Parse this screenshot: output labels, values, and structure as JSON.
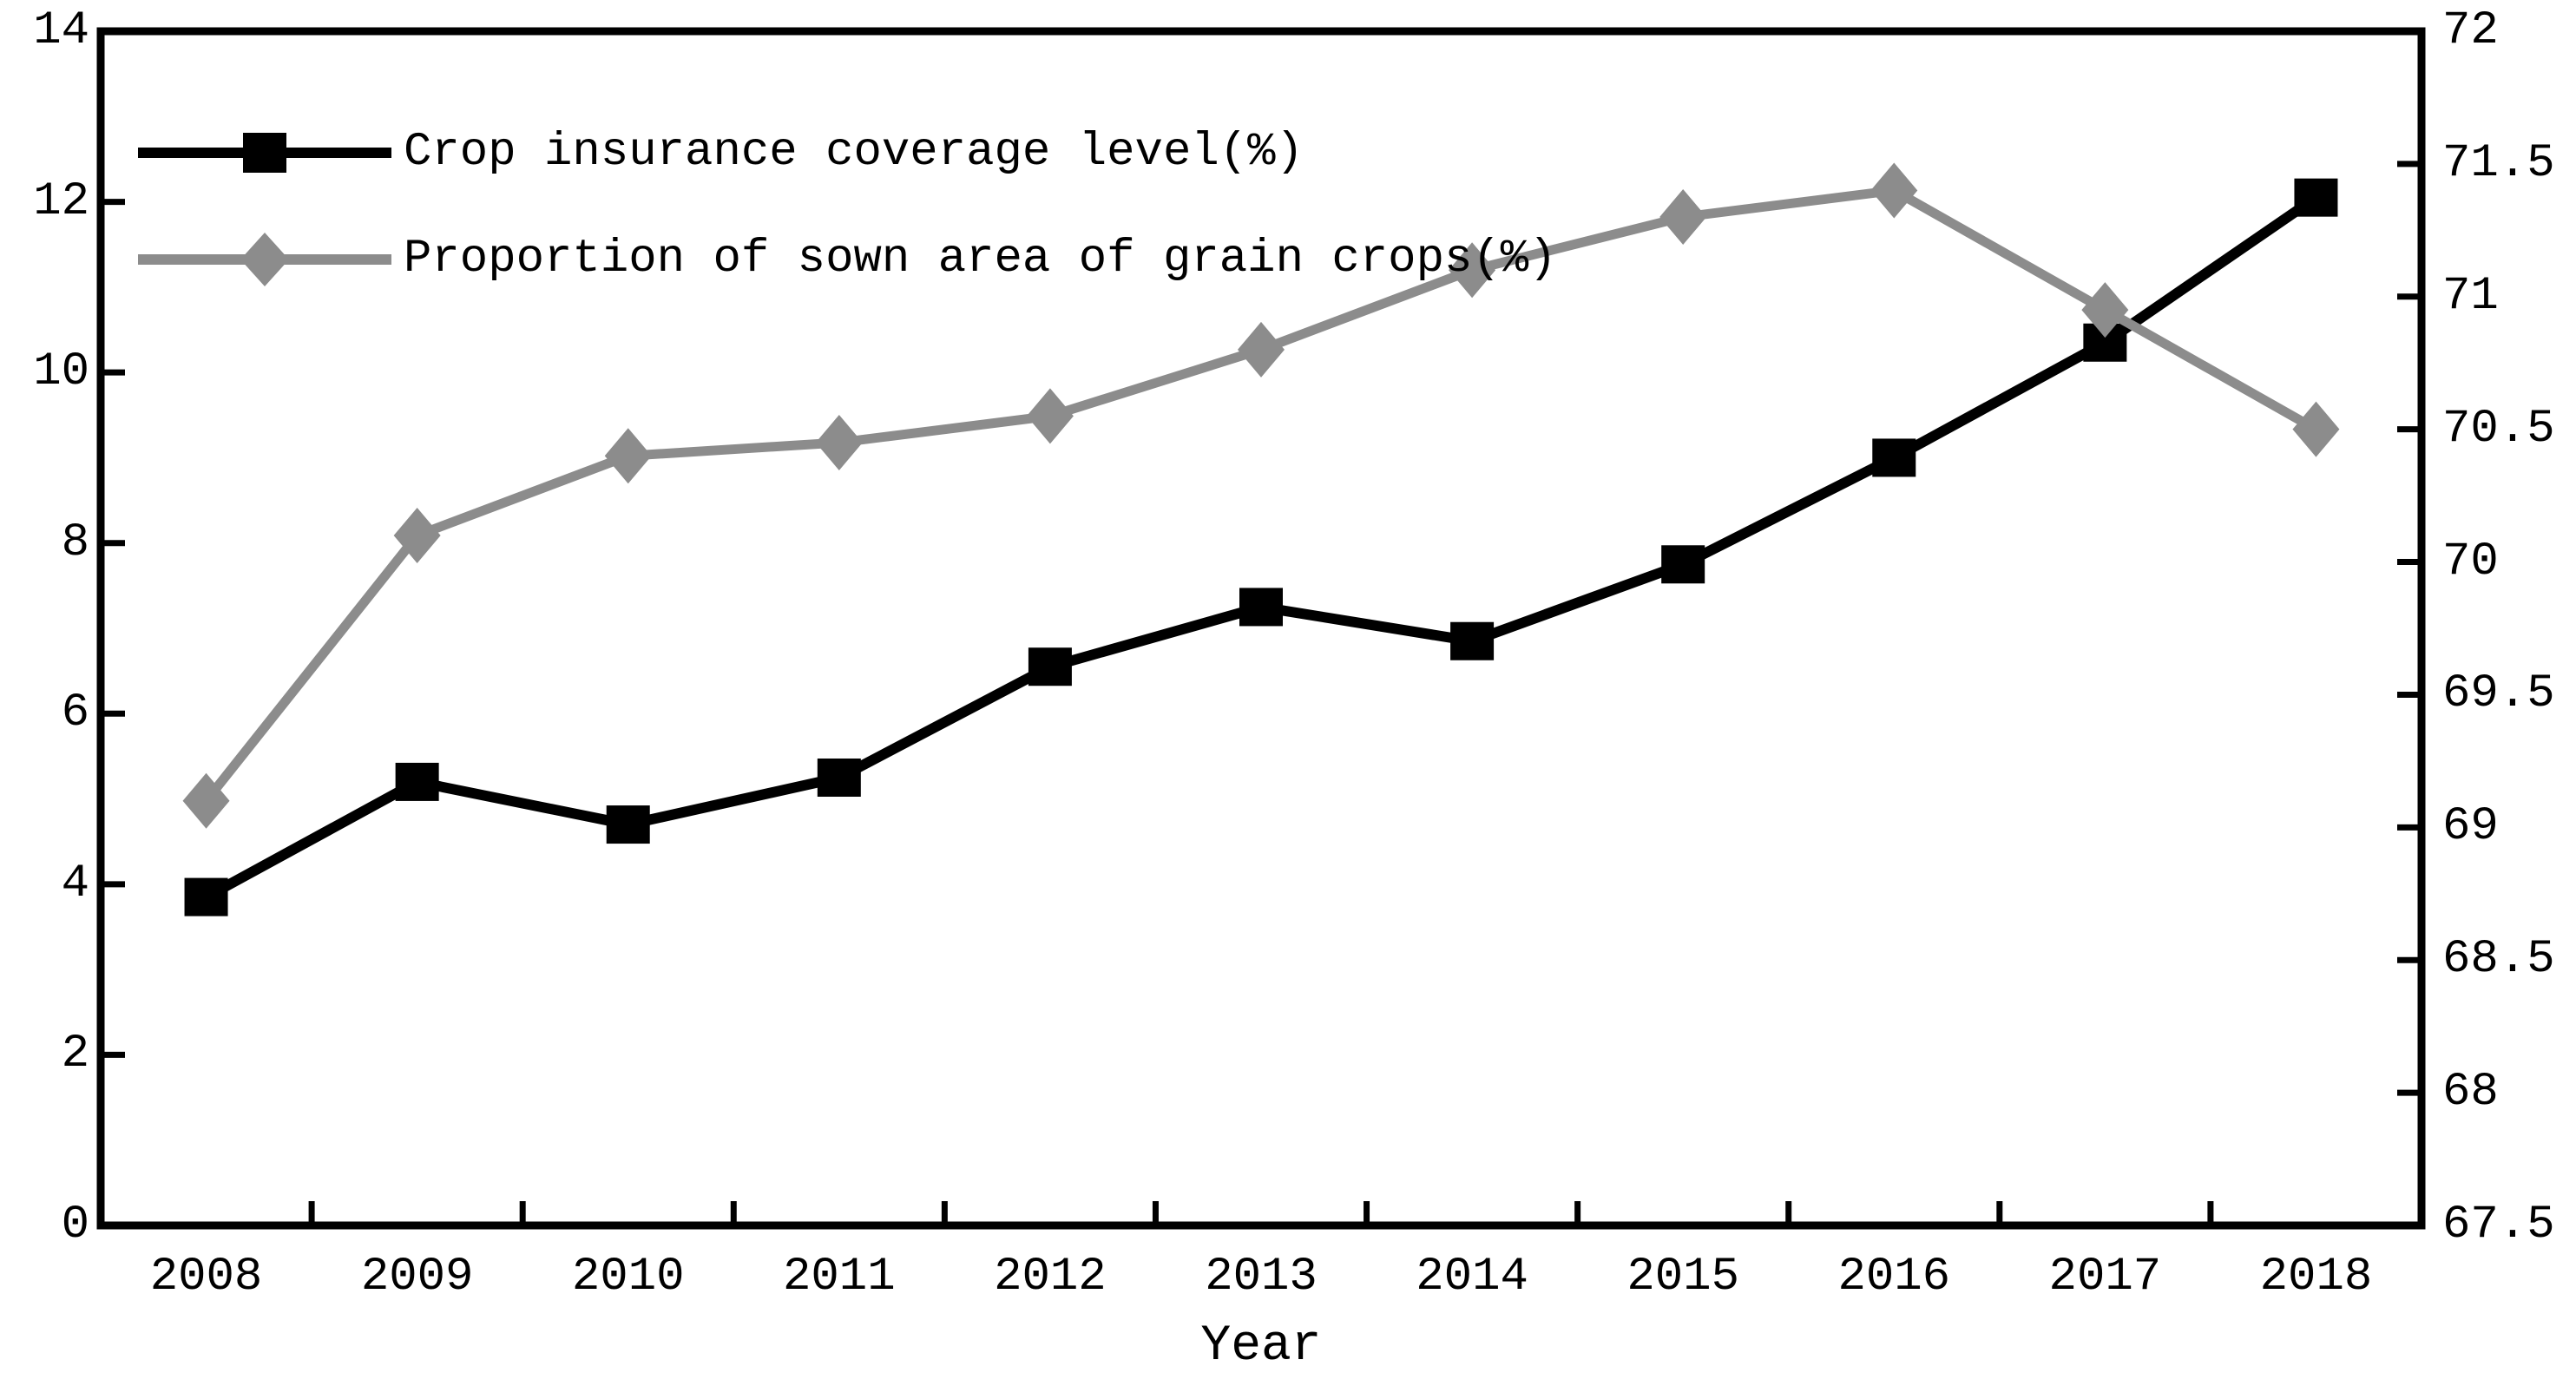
{
  "page": {
    "background": "#ffffff"
  },
  "chart_data": {
    "type": "line",
    "title": "",
    "xlabel": "Year",
    "categories": [
      "2008",
      "2009",
      "2010",
      "2011",
      "2012",
      "2013",
      "2014",
      "2015",
      "2016",
      "2017",
      "2018"
    ],
    "series": [
      {
        "name": "Crop insurance coverage level(%)",
        "axis": "left",
        "color": "#000000",
        "marker": "square",
        "values": [
          3.85,
          5.2,
          4.7,
          5.25,
          6.55,
          7.25,
          6.85,
          7.75,
          9.0,
          10.35,
          12.05
        ]
      },
      {
        "name": "Proportion of sown area of grain crops(%)",
        "axis": "right",
        "color": "#8c8c8c",
        "marker": "diamond",
        "values": [
          69.1,
          70.1,
          70.4,
          70.45,
          70.55,
          70.8,
          71.1,
          71.3,
          71.4,
          70.95,
          70.5
        ]
      }
    ],
    "left_axis": {
      "min": 0,
      "max": 14,
      "tick_values": [
        0,
        2,
        4,
        6,
        8,
        10,
        12,
        14
      ],
      "tick_labels": [
        "0",
        "2",
        "4",
        "6",
        "8",
        "10",
        "12",
        "14"
      ]
    },
    "right_axis": {
      "min": 67.5,
      "max": 72,
      "tick_values": [
        67.5,
        68,
        68.5,
        69,
        69.5,
        70,
        70.5,
        71,
        71.5,
        72
      ],
      "tick_labels": [
        "67.5",
        "68",
        "68.5",
        "69",
        "69.5",
        "70",
        "70.5",
        "71",
        "71.5",
        "72"
      ]
    },
    "legend_position": "top-left",
    "grid": false
  }
}
